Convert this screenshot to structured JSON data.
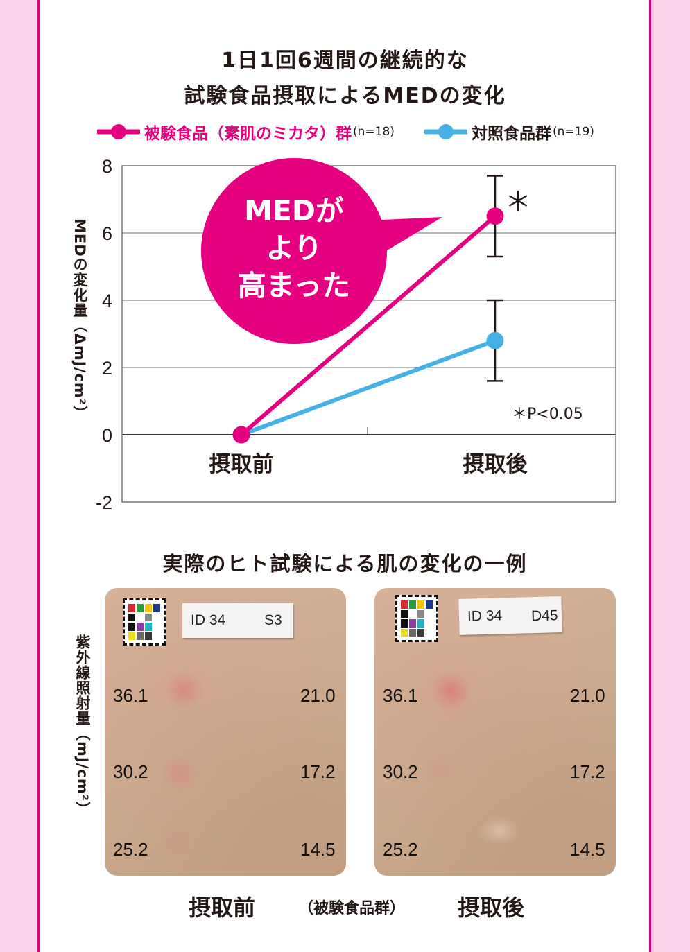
{
  "chart_data": {
    "type": "line",
    "title_line1": "1日1回6週間の継続的な",
    "title_line2": "試験食品摂取によるMEDの変化",
    "categories": [
      "摂取前",
      "摂取後"
    ],
    "ylabel": "MEDの変化量（ΔmJ/cm²）",
    "ylim": [
      -2,
      8
    ],
    "yticks": [
      "8",
      "6",
      "4",
      "2",
      "0",
      "-2"
    ],
    "grid": true,
    "legend_placement": "top",
    "series": [
      {
        "name": "被験食品（素肌のミカタ）群",
        "n_label": "(n=18)",
        "color": "#e4007f",
        "values": [
          0,
          6.5
        ],
        "errors": [
          0,
          1.2
        ]
      },
      {
        "name": "対照食品群",
        "n_label": "(n=19)",
        "color": "#45b1e4",
        "values": [
          0,
          2.8
        ],
        "errors": [
          0,
          1.2
        ]
      }
    ],
    "significance_mark": "＊",
    "significance_note": "＊P<0.05",
    "callout": [
      "MEDが",
      "より",
      "高まった"
    ]
  },
  "photos": {
    "section_title": "実際のヒト試験による肌の変化の一例",
    "ylabel": "紫外線照射量（mJ/cm²）",
    "group_label": "（被験食品群）",
    "chip_colors": [
      "#d9262b",
      "#2a9d3c",
      "#f1c40f",
      "#1b3a8c",
      "#111111",
      "#ffffff",
      "#888888",
      "#ffffff",
      "#111111",
      "#8e3ba8",
      "#1fb5c7",
      "#ffffff",
      "#e6df17",
      "#6a6a6a",
      "#3a3a3a",
      "#ffffff"
    ],
    "before": {
      "caption": "摂取前",
      "id": "ID 34",
      "code": "S3",
      "doses_left": [
        "36.1",
        "30.2",
        "25.2"
      ],
      "doses_right": [
        "21.0",
        "17.2",
        "14.5"
      ]
    },
    "after": {
      "caption": "摂取後",
      "id": "ID 34",
      "code": "D45",
      "doses_left": [
        "36.1",
        "30.2",
        "25.2"
      ],
      "doses_right": [
        "21.0",
        "17.2",
        "14.5"
      ]
    }
  }
}
